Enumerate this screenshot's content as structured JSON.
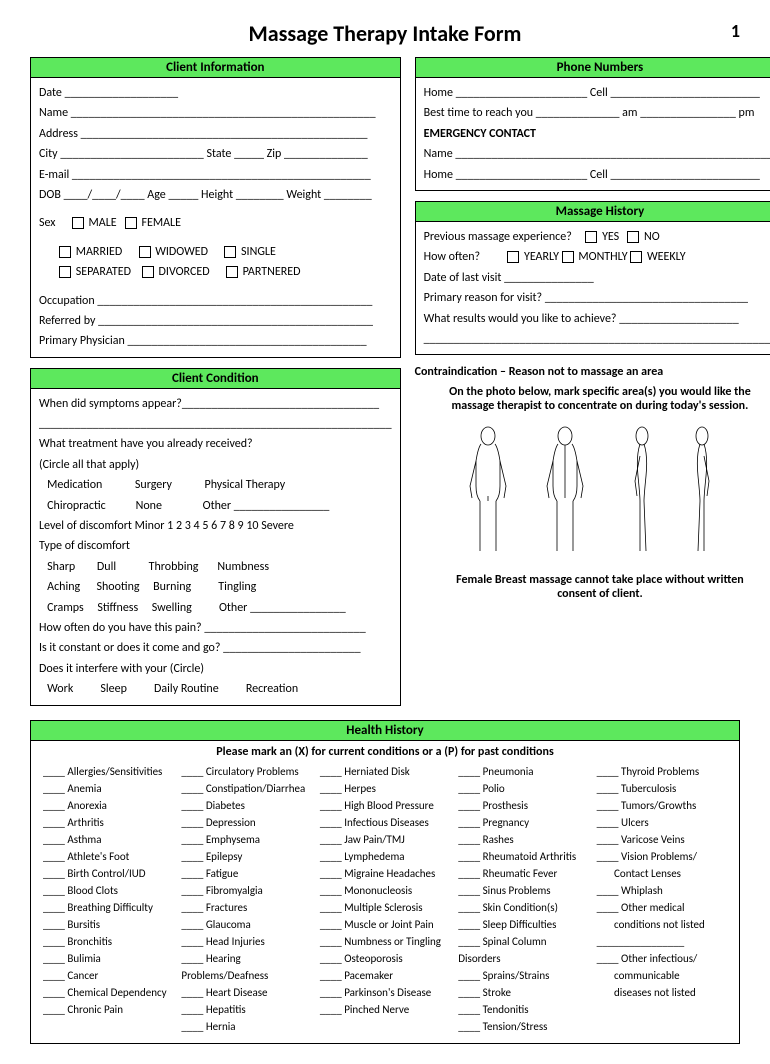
{
  "title": "Massage Therapy Intake Form",
  "page_number": "1",
  "client_info": {
    "header": "Client Information",
    "date": "Date ___________________",
    "name": "Name ___________________________________________________",
    "address": "Address ________________________________________________",
    "city_state_zip": "City ________________________ State _____ Zip ______________",
    "email": "E-mail __________________________________________________",
    "dob_age": "DOB ____/____/____   Age _____ Height ________ Weight ________",
    "sex_label": "Sex",
    "male": "MALE",
    "female": "FEMALE",
    "married": "MARRIED",
    "widowed": "WIDOWED",
    "single": "SINGLE",
    "separated": "SEPARATED",
    "divorced": "DIVORCED",
    "partnered": "PARTNERED",
    "occupation": "Occupation ______________________________________________",
    "referred": "Referred by ______________________________________________",
    "physician": "Primary Physician ________________________________________"
  },
  "phone": {
    "header": "Phone Numbers",
    "home_cell": "Home ______________________ Cell _________________________",
    "best_time": "Best time to reach you ______________ am ________________ pm",
    "emergency": "EMERGENCY CONTACT",
    "ename": "Name _____________________________________________________",
    "ehome": "Home ______________________ Cell _________________________"
  },
  "history": {
    "header": "Massage History",
    "prev": "Previous massage experience?",
    "yes": "YES",
    "no": "NO",
    "how_often": "How often?",
    "yearly": "YEARLY",
    "monthly": "MONTHLY",
    "weekly": "WEEKLY",
    "last_visit": "Date of last visit _______________",
    "reason": "Primary reason for visit? __________________________________",
    "results": "What results would you like to achieve? ____________________",
    "blank": "___________________________________________________________"
  },
  "condition": {
    "header": "Client Condition",
    "symptoms": "When did symptoms appear?_________________________________",
    "blank1": "___________________________________________________________",
    "treatment": "What treatment have you already received?",
    "circle": "(Circle all that apply)",
    "t_row1": "   Medication            Surgery            Physical Therapy",
    "t_row2": "   Chiropractic           None               Other ________________",
    "level": "Level of discomfort  Minor  1  2  3  4  5  6  7  8  9  10  Severe",
    "type": "Type of discomfort",
    "d_row1": "   Sharp        Dull            Throbbing       Numbness",
    "d_row2": "   Aching      Shooting     Burning          Tingling",
    "d_row3": "   Cramps     Stiffness     Swelling          Other ________________",
    "pain_often": "How often do you have this pain? ___________________________",
    "constant": "Is it constant or does it come and go? _______________________",
    "interfere": "Does it interfere with your (Circle)",
    "i_row": "   Work          Sleep          Daily Routine          Recreation"
  },
  "contra": "Contraindication – Reason not to massage an area",
  "photo_instr1": "On the photo below, mark specific area(s) you would like the",
  "photo_instr2": "massage therapist to concentrate on during today's session.",
  "consent1": "Female Breast massage cannot take place without written",
  "consent2": "consent of client.",
  "health": {
    "header": "Health History",
    "instruction": "Please mark an (X) for current conditions or a (P) for past conditions",
    "col1": [
      "Allergies/Sensitivities",
      "Anemia",
      "Anorexia",
      "Arthritis",
      "Asthma",
      "Athlete's Foot",
      "Birth Control/IUD",
      "Blood Clots",
      "Breathing Difficulty",
      "Bursitis",
      "Bronchitis",
      "Bulimia",
      "Cancer",
      "Chemical Dependency",
      "Chronic Pain"
    ],
    "col2": [
      "Circulatory Problems",
      "Constipation/Diarrhea",
      "Diabetes",
      "Depression",
      "Emphysema",
      "Epilepsy",
      "Fatigue",
      "Fibromyalgia",
      "Fractures",
      "Glaucoma",
      "Head Injuries",
      "Hearing Problems/Deafness",
      "Heart Disease",
      "Hepatitis",
      "Hernia"
    ],
    "col3": [
      "Herniated Disk",
      "Herpes",
      "High Blood Pressure",
      "Infectious Diseases",
      "Jaw Pain/TMJ",
      "Lymphedema",
      "Migraine Headaches",
      "Mononucleosis",
      "Multiple Sclerosis",
      "Muscle or Joint Pain",
      "Numbness or Tingling",
      "Osteoporosis",
      "Pacemaker",
      "Parkinson's Disease",
      "Pinched Nerve"
    ],
    "col4": [
      "Pneumonia",
      "Polio",
      "Prosthesis",
      "Pregnancy",
      "Rashes",
      "Rheumatoid Arthritis",
      "Rheumatic Fever",
      "Sinus Problems",
      "Skin Condition(s)",
      "Sleep Difficulties",
      "Spinal Column Disorders",
      "Sprains/Strains",
      "Stroke",
      "Tendonitis",
      "Tension/Stress"
    ],
    "col5": [
      "Thyroid Problems",
      "Tuberculosis",
      "Tumors/Growths",
      "Ulcers",
      "Varicose Veins",
      "Vision Problems/",
      "       Contact Lenses",
      "Whiplash",
      "Other medical",
      "       conditions not listed",
      "________________",
      "Other infectious/",
      "       communicable",
      "       diseases not listed"
    ]
  }
}
